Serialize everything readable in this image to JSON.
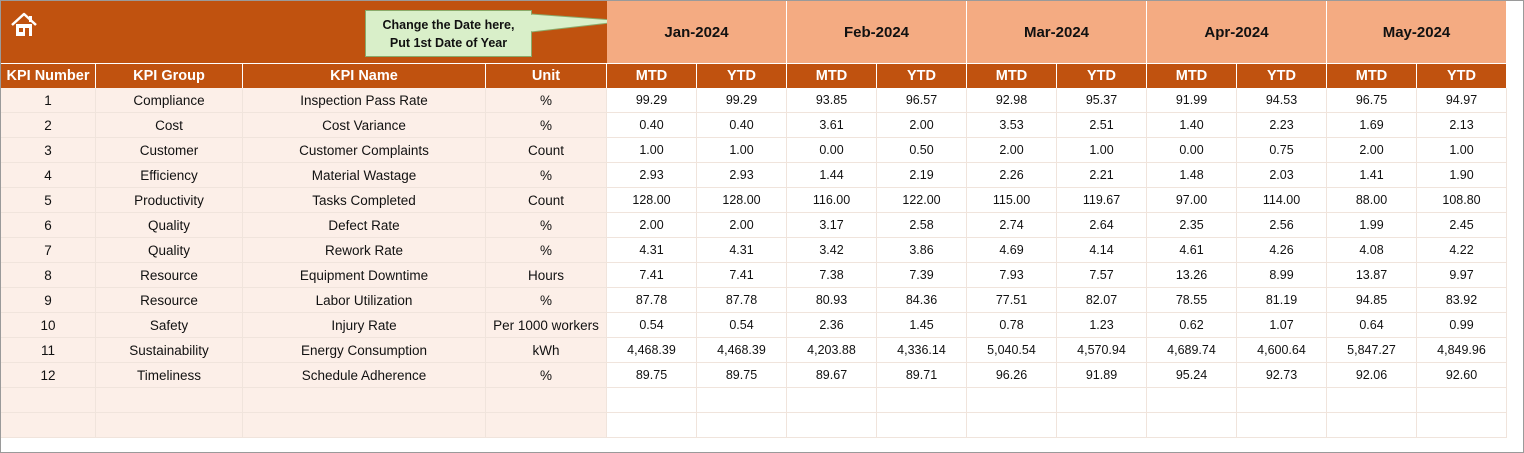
{
  "callout": {
    "line1": "Change the Date here,",
    "line2": "Put 1st Date of Year"
  },
  "months": [
    "Jan-2024",
    "Feb-2024",
    "Mar-2024",
    "Apr-2024",
    "May-2024"
  ],
  "headers": {
    "kpi_number": "KPI Number",
    "kpi_group": "KPI Group",
    "kpi_name": "KPI Name",
    "unit": "Unit",
    "mtd": "MTD",
    "ytd": "YTD"
  },
  "colors": {
    "header_bg": "#c0520f",
    "month_bg": "#f4ab82",
    "callout_bg": "#d9efc9",
    "left_row_bg": "#fcefe8"
  },
  "rows": [
    {
      "num": "1",
      "group": "Compliance",
      "name": "Inspection Pass Rate",
      "unit": "%",
      "values": [
        "99.29",
        "99.29",
        "93.85",
        "96.57",
        "92.98",
        "95.37",
        "91.99",
        "94.53",
        "96.75",
        "94.97"
      ]
    },
    {
      "num": "2",
      "group": "Cost",
      "name": "Cost Variance",
      "unit": "%",
      "values": [
        "0.40",
        "0.40",
        "3.61",
        "2.00",
        "3.53",
        "2.51",
        "1.40",
        "2.23",
        "1.69",
        "2.13"
      ]
    },
    {
      "num": "3",
      "group": "Customer",
      "name": "Customer Complaints",
      "unit": "Count",
      "values": [
        "1.00",
        "1.00",
        "0.00",
        "0.50",
        "2.00",
        "1.00",
        "0.00",
        "0.75",
        "2.00",
        "1.00"
      ]
    },
    {
      "num": "4",
      "group": "Efficiency",
      "name": "Material Wastage",
      "unit": "%",
      "values": [
        "2.93",
        "2.93",
        "1.44",
        "2.19",
        "2.26",
        "2.21",
        "1.48",
        "2.03",
        "1.41",
        "1.90"
      ]
    },
    {
      "num": "5",
      "group": "Productivity",
      "name": "Tasks Completed",
      "unit": "Count",
      "values": [
        "128.00",
        "128.00",
        "116.00",
        "122.00",
        "115.00",
        "119.67",
        "97.00",
        "114.00",
        "88.00",
        "108.80"
      ]
    },
    {
      "num": "6",
      "group": "Quality",
      "name": "Defect Rate",
      "unit": "%",
      "values": [
        "2.00",
        "2.00",
        "3.17",
        "2.58",
        "2.74",
        "2.64",
        "2.35",
        "2.56",
        "1.99",
        "2.45"
      ]
    },
    {
      "num": "7",
      "group": "Quality",
      "name": "Rework Rate",
      "unit": "%",
      "values": [
        "4.31",
        "4.31",
        "3.42",
        "3.86",
        "4.69",
        "4.14",
        "4.61",
        "4.26",
        "4.08",
        "4.22"
      ]
    },
    {
      "num": "8",
      "group": "Resource",
      "name": "Equipment Downtime",
      "unit": "Hours",
      "values": [
        "7.41",
        "7.41",
        "7.38",
        "7.39",
        "7.93",
        "7.57",
        "13.26",
        "8.99",
        "13.87",
        "9.97"
      ]
    },
    {
      "num": "9",
      "group": "Resource",
      "name": "Labor Utilization",
      "unit": "%",
      "values": [
        "87.78",
        "87.78",
        "80.93",
        "84.36",
        "77.51",
        "82.07",
        "78.55",
        "81.19",
        "94.85",
        "83.92"
      ]
    },
    {
      "num": "10",
      "group": "Safety",
      "name": "Injury Rate",
      "unit": "Per 1000 workers",
      "values": [
        "0.54",
        "0.54",
        "2.36",
        "1.45",
        "0.78",
        "1.23",
        "0.62",
        "1.07",
        "0.64",
        "0.99"
      ]
    },
    {
      "num": "11",
      "group": "Sustainability",
      "name": "Energy Consumption",
      "unit": "kWh",
      "values": [
        "4,468.39",
        "4,468.39",
        "4,203.88",
        "4,336.14",
        "5,040.54",
        "4,570.94",
        "4,689.74",
        "4,600.64",
        "5,847.27",
        "4,849.96"
      ]
    },
    {
      "num": "12",
      "group": "Timeliness",
      "name": "Schedule Adherence",
      "unit": "%",
      "values": [
        "89.75",
        "89.75",
        "89.67",
        "89.71",
        "96.26",
        "91.89",
        "95.24",
        "92.73",
        "92.06",
        "92.60"
      ]
    }
  ]
}
